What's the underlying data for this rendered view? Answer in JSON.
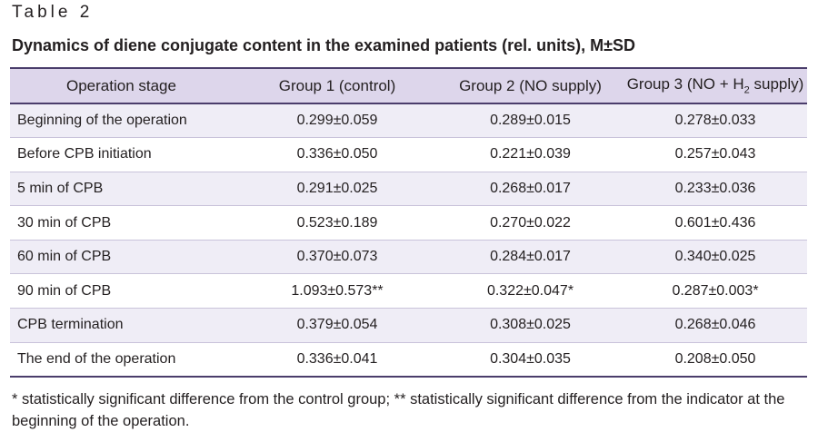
{
  "table_label": "Table 2",
  "title": "Dynamics of diene conjugate content in the examined patients (rel. units), M±SD",
  "columns": {
    "stage": "Operation stage",
    "group1": "Group 1 (control)",
    "group2": "Group 2 (NO supply)",
    "group3_prefix": "Group 3 (NO + H",
    "group3_sub": "2",
    "group3_suffix": " supply)"
  },
  "rows": [
    {
      "stage": "Beginning of the operation",
      "g1": "0.299±0.059",
      "g2": "0.289±0.015",
      "g3": "0.278±0.033"
    },
    {
      "stage": "Before CPB initiation",
      "g1": "0.336±0.050",
      "g2": "0.221±0.039",
      "g3": "0.257±0.043"
    },
    {
      "stage": "5 min of CPB",
      "g1": "0.291±0.025",
      "g2": "0.268±0.017",
      "g3": "0.233±0.036"
    },
    {
      "stage": "30 min of CPB",
      "g1": "0.523±0.189",
      "g2": "0.270±0.022",
      "g3": "0.601±0.436"
    },
    {
      "stage": "60 min of CPB",
      "g1": "0.370±0.073",
      "g2": "0.284±0.017",
      "g3": "0.340±0.025"
    },
    {
      "stage": "90 min of CPB",
      "g1": "1.093±0.573**",
      "g2": "0.322±0.047*",
      "g3": "0.287±0.003*"
    },
    {
      "stage": "CPB termination",
      "g1": "0.379±0.054",
      "g2": "0.308±0.025",
      "g3": "0.268±0.046"
    },
    {
      "stage": "The end of the operation",
      "g1": "0.336±0.041",
      "g2": "0.304±0.035",
      "g3": "0.208±0.050"
    }
  ],
  "footnote": "* statistically significant difference from the control group; ** statistically significant difference from the indicator at the beginning of the operation.",
  "colors": {
    "header_bg": "#ddd6eb",
    "row_alt_bg": "#efedf6",
    "rule": "#4a3d6b",
    "text": "#231f20"
  }
}
